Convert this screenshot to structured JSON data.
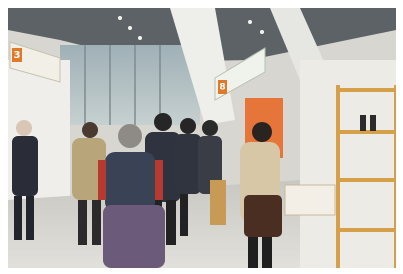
{
  "signs": [
    {
      "label": "3"
    },
    {
      "label": "8"
    }
  ]
}
